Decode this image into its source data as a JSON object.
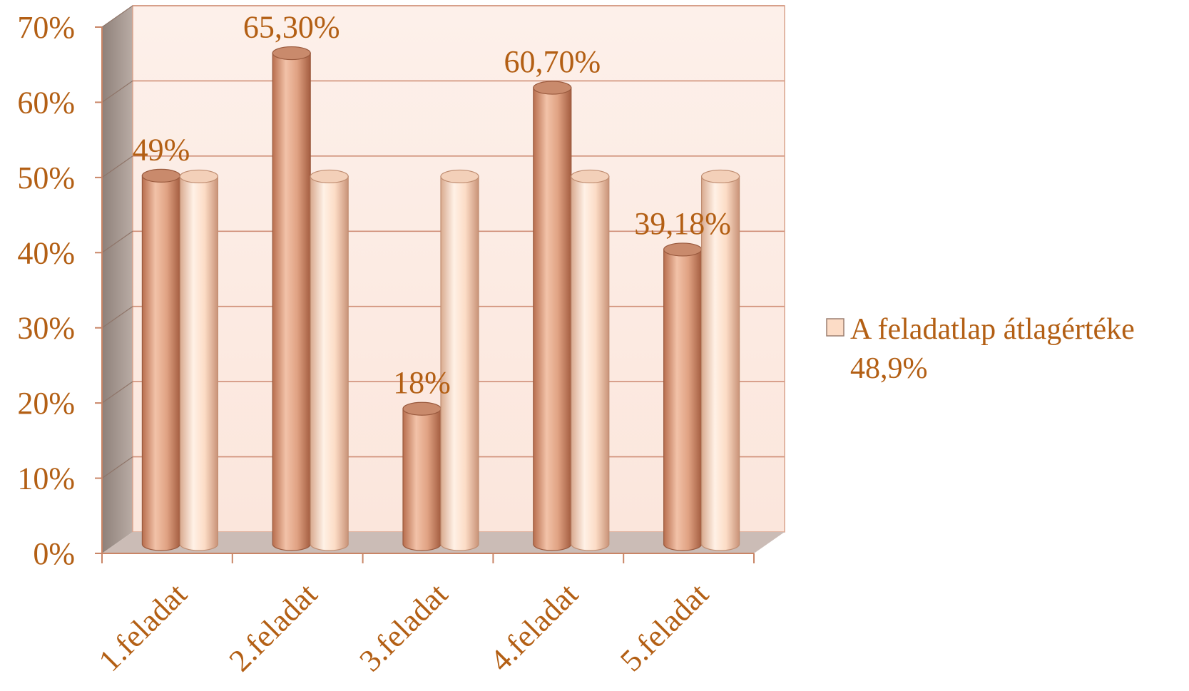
{
  "chart_data": {
    "type": "bar",
    "categories": [
      "1.feladat",
      "2.feladat",
      "3.feladat",
      "4.feladat",
      "5.feladat"
    ],
    "series": [
      {
        "values": [
          49,
          65.3,
          18,
          60.7,
          39.18
        ],
        "data_labels": [
          "49%",
          "65,30%",
          "18%",
          "60,70%",
          "39,18%"
        ]
      },
      {
        "name": "A feladatlap átlagértéke 48,9%",
        "values": [
          48.9,
          48.9,
          48.9,
          48.9,
          48.9
        ]
      }
    ],
    "y_ticks": [
      "0%",
      "10%",
      "20%",
      "30%",
      "40%",
      "50%",
      "60%",
      "70%"
    ],
    "ylim": [
      0,
      70
    ],
    "legend": {
      "position": "right",
      "lines": [
        "A feladatlap átlagértéke",
        "48,9%"
      ]
    },
    "grid": true,
    "colors": {
      "series_1": "#e3a98c",
      "series_2": "#fcdcc6",
      "text": "#b35f14",
      "wall": "#fdf0ea",
      "side_wall": "#a89a92",
      "floor": "#cbbcb6",
      "gridline": "#d08f78"
    }
  }
}
